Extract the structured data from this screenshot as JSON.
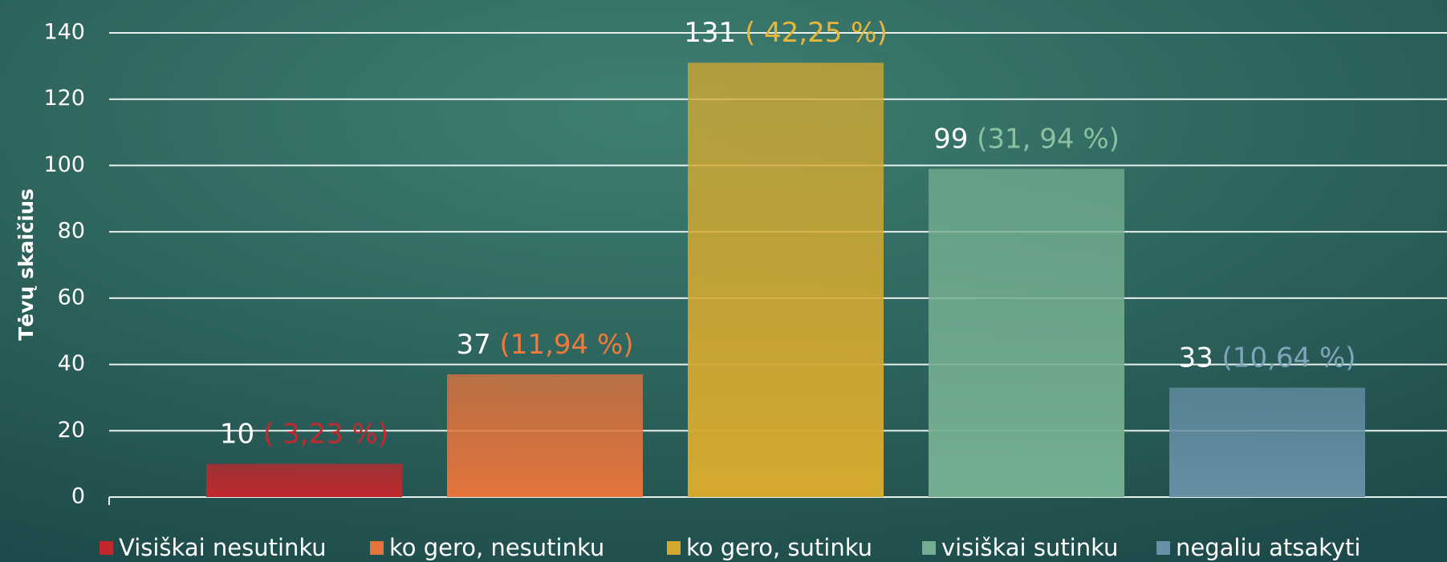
{
  "chart_data": {
    "type": "bar",
    "ylabel": "Tėvų skaičius",
    "categories": [
      "Visiškai nesutinku",
      "ko gero, nesutinku",
      "ko gero, sutinku",
      "visiškai sutinku",
      "negaliu atsakyti"
    ],
    "values": [
      10,
      37,
      131,
      99,
      33
    ],
    "percent_labels": [
      "( 3,23 %)",
      "(11,94 %)",
      "( 42,25 %)",
      "(31, 94 %)",
      "(10,64 %)"
    ],
    "colors": [
      "#c0282c",
      "#e4743c",
      "#d4a930",
      "#74ae90",
      "#6590a5"
    ],
    "percent_colors": [
      "#c8282c",
      "#f07a3a",
      "#e8b73a",
      "#8cc0a0",
      "#7fa6bc"
    ],
    "ylim": [
      0,
      140
    ],
    "yticks": [
      0,
      20,
      40,
      60,
      80,
      100,
      120,
      140
    ],
    "grid": true,
    "legend": "bottom"
  }
}
